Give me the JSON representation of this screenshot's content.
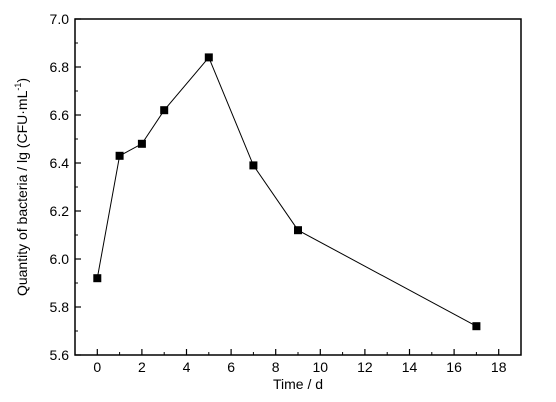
{
  "chart_data": {
    "type": "line",
    "title": "",
    "xlabel": "Time / d",
    "ylabel_main": "Quantity of bacteria / lg (CFU·mL",
    "ylabel_sup": "-1",
    "ylabel_close": ")",
    "xlim": [
      -1,
      19
    ],
    "ylim": [
      5.6,
      7.0
    ],
    "x_ticks": [
      0,
      2,
      4,
      6,
      8,
      10,
      12,
      14,
      16,
      18
    ],
    "x_tick_labels": [
      "0",
      "2",
      "4",
      "6",
      "8",
      "10",
      "12",
      "14",
      "16",
      "18"
    ],
    "y_ticks": [
      5.6,
      5.8,
      6.0,
      6.2,
      6.4,
      6.6,
      6.8,
      7.0
    ],
    "y_tick_labels": [
      "5.6",
      "5.8",
      "6.0",
      "6.2",
      "6.4",
      "6.6",
      "6.8",
      "7.0"
    ],
    "grid": false,
    "series": [
      {
        "marker": "square",
        "color": "#000000",
        "x": [
          0,
          1,
          2,
          3,
          5,
          7,
          9,
          17
        ],
        "y": [
          5.92,
          6.43,
          6.48,
          6.62,
          6.84,
          6.39,
          6.12,
          5.72
        ]
      }
    ]
  }
}
